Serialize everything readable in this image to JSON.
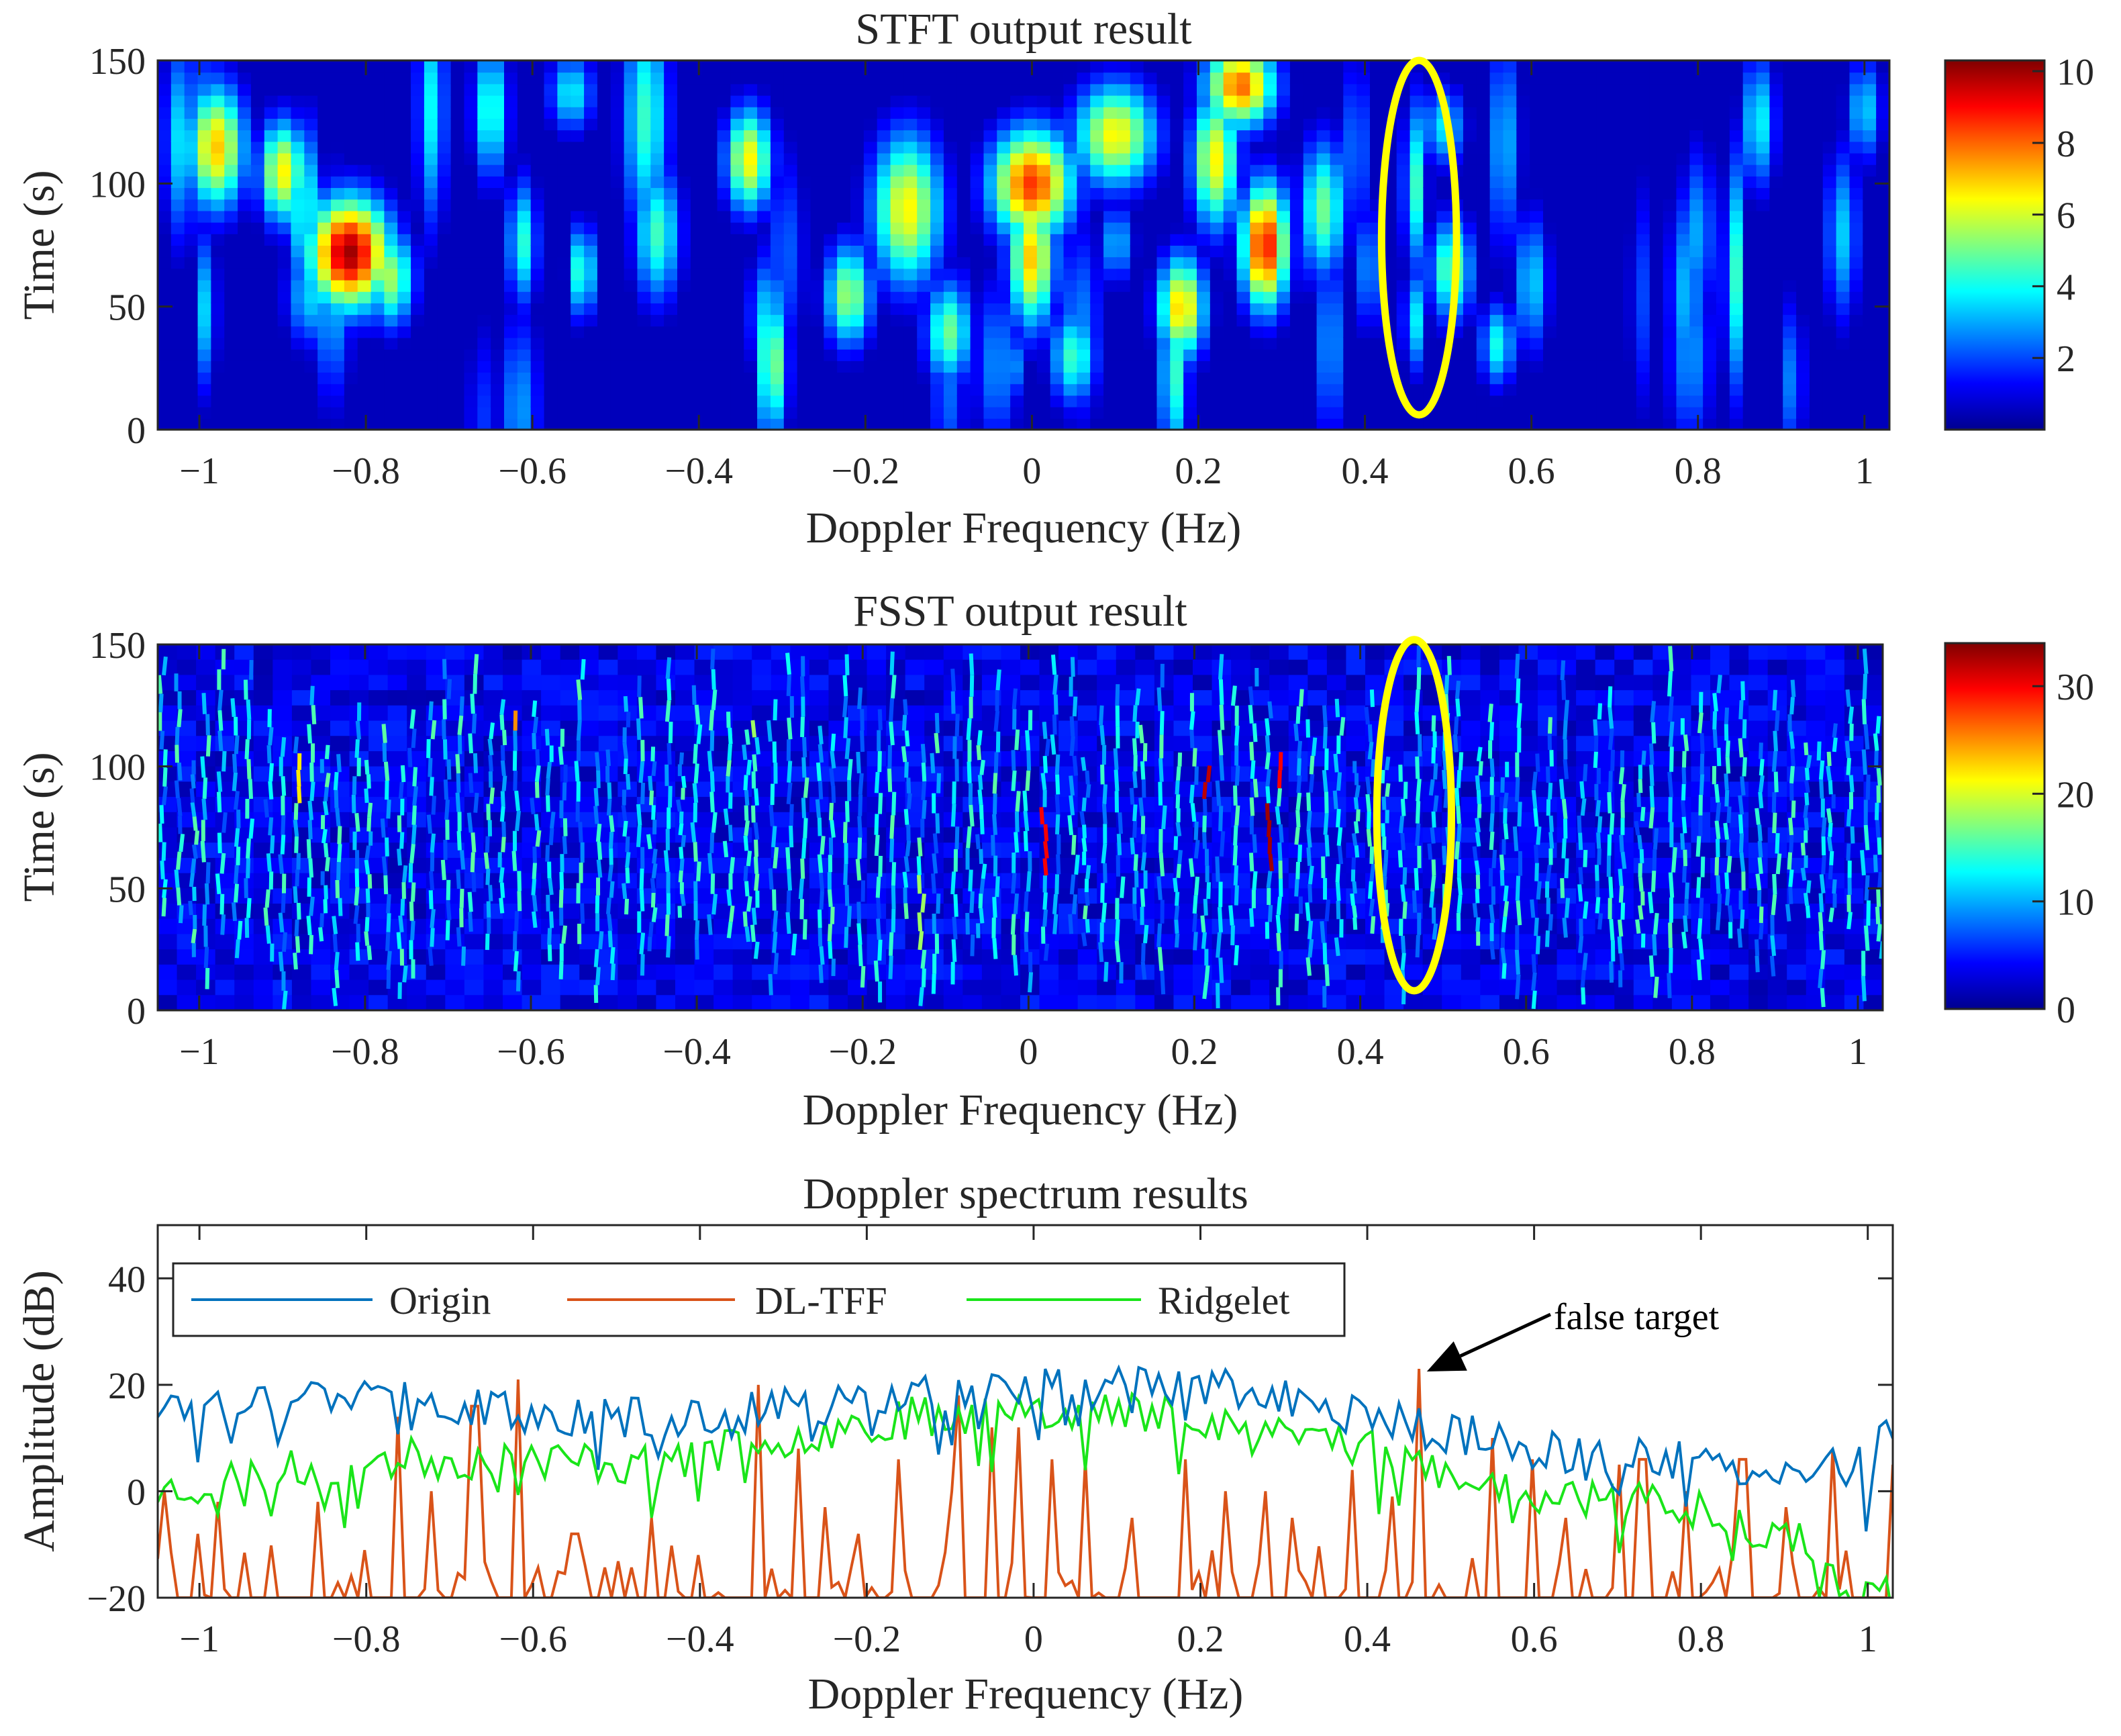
{
  "chart_data": [
    {
      "id": "stft",
      "type": "heatmap",
      "title": "STFT output result",
      "xlabel": "Doppler Frequency (Hz)",
      "ylabel": "Time (s)",
      "xlim": [
        -1.05,
        1.03
      ],
      "ylim": [
        0,
        150
      ],
      "xticks": [
        -1,
        -0.8,
        -0.6,
        -0.4,
        -0.2,
        0,
        0.2,
        0.4,
        0.6,
        0.8,
        1
      ],
      "xtick_labels": [
        "−1",
        "−0.8",
        "−0.6",
        "−0.4",
        "−0.2",
        "0",
        "0.2",
        "0.4",
        "0.6",
        "0.8",
        "1"
      ],
      "yticks": [
        0,
        50,
        100,
        150
      ],
      "ytick_labels": [
        "0",
        "50",
        "100",
        "150"
      ],
      "colorbar": {
        "colormap": "jet",
        "range": [
          0,
          10.3
        ],
        "ticks": [
          2,
          4,
          6,
          8,
          10
        ],
        "tick_labels": [
          "2",
          "4",
          "6",
          "8",
          "10"
        ]
      },
      "hotspots": [
        {
          "f": -0.82,
          "t": 72,
          "v": 10,
          "sf": 0.035,
          "st": 16
        },
        {
          "f": -0.98,
          "t": 115,
          "v": 7,
          "sf": 0.025,
          "st": 18
        },
        {
          "f": -0.9,
          "t": 105,
          "v": 6.5,
          "sf": 0.02,
          "st": 15
        },
        {
          "f": -0.77,
          "t": 62,
          "v": 5.5,
          "sf": 0.02,
          "st": 14
        },
        {
          "f": 0.0,
          "t": 100,
          "v": 8.5,
          "sf": 0.035,
          "st": 16
        },
        {
          "f": 0.0,
          "t": 70,
          "v": 7,
          "sf": 0.02,
          "st": 20
        },
        {
          "f": 0.28,
          "t": 75,
          "v": 9,
          "sf": 0.02,
          "st": 18
        },
        {
          "f": 0.25,
          "t": 140,
          "v": 8,
          "sf": 0.03,
          "st": 12
        },
        {
          "f": 0.18,
          "t": 50,
          "v": 7,
          "sf": 0.02,
          "st": 15
        },
        {
          "f": 0.1,
          "t": 120,
          "v": 6.5,
          "sf": 0.035,
          "st": 15
        },
        {
          "f": -0.34,
          "t": 110,
          "v": 6.5,
          "sf": 0.02,
          "st": 15
        },
        {
          "f": -0.15,
          "t": 90,
          "v": 6.5,
          "sf": 0.03,
          "st": 22
        },
        {
          "f": -0.22,
          "t": 55,
          "v": 5.5,
          "sf": 0.02,
          "st": 15
        },
        {
          "f": 0.22,
          "t": 110,
          "v": 6.5,
          "sf": 0.02,
          "st": 20
        },
        {
          "f": -0.1,
          "t": 40,
          "v": 5,
          "sf": 0.02,
          "st": 15
        },
        {
          "f": 0.35,
          "t": 90,
          "v": 5,
          "sf": 0.02,
          "st": 20
        },
        {
          "f": -0.65,
          "t": 130,
          "v": 4.5,
          "sf": 0.015,
          "st": 20
        },
        {
          "f": 0.46,
          "t": 100,
          "v": 4.5,
          "sf": 0.01,
          "st": 25
        },
        {
          "f": 0.46,
          "t": 45,
          "v": 3.8,
          "sf": 0.01,
          "st": 15
        },
        {
          "f": -0.45,
          "t": 80,
          "v": 4.5,
          "sf": 0.02,
          "st": 20
        },
        {
          "f": 0.05,
          "t": 30,
          "v": 4.5,
          "sf": 0.02,
          "st": 14
        },
        {
          "f": 0.6,
          "t": 60,
          "v": 3.5,
          "sf": 0.015,
          "st": 20
        },
        {
          "f": 1.0,
          "t": 130,
          "v": 3.5,
          "sf": 0.015,
          "st": 15
        },
        {
          "f": 0.8,
          "t": 80,
          "v": 3.0,
          "sf": 0.015,
          "st": 25
        }
      ],
      "highlight_ellipse": {
        "f": 0.465,
        "t": 78,
        "rf": 0.045,
        "rt": 72
      }
    },
    {
      "id": "fsst",
      "type": "heatmap",
      "title": "FSST output result",
      "xlabel": "Doppler Frequency (Hz)",
      "ylabel": "Time (s)",
      "xlim": [
        -1.05,
        1.03
      ],
      "ylim": [
        0,
        150
      ],
      "xticks": [
        -1,
        -0.8,
        -0.6,
        -0.4,
        -0.2,
        0,
        0.2,
        0.4,
        0.6,
        0.8,
        1
      ],
      "xtick_labels": [
        "−1",
        "−0.8",
        "−0.6",
        "−0.4",
        "−0.2",
        "0",
        "0.2",
        "0.4",
        "0.6",
        "0.8",
        "1"
      ],
      "yticks": [
        0,
        50,
        100,
        150
      ],
      "ytick_labels": [
        "0",
        "50",
        "100",
        "150"
      ],
      "colorbar": {
        "colormap": "jet",
        "range": [
          0,
          34
        ],
        "ticks": [
          0,
          10,
          20,
          30
        ],
        "tick_labels": [
          "0",
          "10",
          "20",
          "30"
        ]
      },
      "ridge_spacing_hz": 0.018,
      "ridge_peaks": [
        {
          "f": -0.88,
          "t": 95,
          "v": 22
        },
        {
          "f": -0.62,
          "t": 125,
          "v": 25
        },
        {
          "f": 0.02,
          "t": 70,
          "v": 30
        },
        {
          "f": 0.22,
          "t": 100,
          "v": 32
        },
        {
          "f": 0.29,
          "t": 70,
          "v": 33
        },
        {
          "f": 0.31,
          "t": 100,
          "v": 30
        },
        {
          "f": -0.12,
          "t": 40,
          "v": 18
        },
        {
          "f": -0.33,
          "t": 125,
          "v": 18
        },
        {
          "f": 0.465,
          "t": 90,
          "v": 14
        }
      ],
      "highlight_ellipse": {
        "f": 0.465,
        "t": 80,
        "rf": 0.045,
        "rt": 72
      }
    },
    {
      "id": "spectrum",
      "type": "line",
      "title": "Doppler spectrum results",
      "xlabel": "Doppler Frequency (Hz)",
      "ylabel": "Amplitude (dB)",
      "xlim": [
        -1.05,
        1.03
      ],
      "ylim": [
        -20,
        50
      ],
      "xticks": [
        -1,
        -0.8,
        -0.6,
        -0.4,
        -0.2,
        0,
        0.2,
        0.4,
        0.6,
        0.8,
        1
      ],
      "xtick_labels": [
        "−1",
        "−0.8",
        "−0.6",
        "−0.4",
        "−0.2",
        "0",
        "0.2",
        "0.4",
        "0.6",
        "0.8",
        "1"
      ],
      "yticks": [
        -20,
        0,
        20,
        40
      ],
      "ytick_labels": [
        "−20",
        "0",
        "20",
        "40"
      ],
      "legend_position": "top-left",
      "series": [
        {
          "name": "Origin",
          "color": "#0072BD",
          "sampling_hz": 0.008,
          "envelope": [
            [
              -1.05,
              16
            ],
            [
              -0.8,
              19
            ],
            [
              -0.6,
              14
            ],
            [
              -0.4,
              14
            ],
            [
              -0.2,
              17
            ],
            [
              0.0,
              19
            ],
            [
              0.2,
              20
            ],
            [
              0.4,
              14
            ],
            [
              0.6,
              8
            ],
            [
              0.8,
              5
            ],
            [
              1.0,
              5
            ],
            [
              1.03,
              12
            ]
          ]
        },
        {
          "name": "DL-TFF",
          "color": "#D95319",
          "sampling_hz": 0.008,
          "floor": -20,
          "peaks": [
            [
              -1.04,
              0
            ],
            [
              -1.0,
              -8
            ],
            [
              -0.98,
              -2
            ],
            [
              -0.86,
              -2
            ],
            [
              -0.76,
              14
            ],
            [
              -0.72,
              0
            ],
            [
              -0.67,
              16
            ],
            [
              -0.62,
              21
            ],
            [
              -0.55,
              -8
            ],
            [
              -0.46,
              -5
            ],
            [
              -0.4,
              -12
            ],
            [
              -0.33,
              20
            ],
            [
              -0.28,
              8
            ],
            [
              -0.25,
              -3
            ],
            [
              -0.21,
              -8
            ],
            [
              -0.16,
              6
            ],
            [
              -0.1,
              0
            ],
            [
              -0.09,
              18
            ],
            [
              -0.05,
              12
            ],
            [
              -0.02,
              12
            ],
            [
              0.02,
              6
            ],
            [
              0.06,
              6
            ],
            [
              0.12,
              -5
            ],
            [
              0.18,
              6
            ],
            [
              0.23,
              0
            ],
            [
              0.28,
              0
            ],
            [
              0.31,
              -5
            ],
            [
              0.38,
              4
            ],
            [
              0.43,
              -1
            ],
            [
              0.465,
              23
            ],
            [
              0.55,
              10
            ],
            [
              0.6,
              6
            ],
            [
              0.64,
              -5
            ],
            [
              0.7,
              5
            ],
            [
              0.73,
              6
            ],
            [
              0.78,
              0
            ],
            [
              0.85,
              6
            ],
            [
              0.9,
              -3
            ],
            [
              0.96,
              8
            ],
            [
              1.03,
              5
            ]
          ]
        },
        {
          "name": "Ridgelet",
          "color": "#1AE51A",
          "sampling_hz": 0.008,
          "envelope": [
            [
              -1.05,
              0
            ],
            [
              -0.8,
              6
            ],
            [
              -0.6,
              6
            ],
            [
              -0.45,
              5
            ],
            [
              -0.3,
              10
            ],
            [
              -0.2,
              13
            ],
            [
              0.0,
              16
            ],
            [
              0.2,
              14
            ],
            [
              0.4,
              9
            ],
            [
              0.5,
              3
            ],
            [
              0.6,
              0
            ],
            [
              0.8,
              -3
            ],
            [
              0.95,
              -10
            ],
            [
              0.97,
              -20
            ]
          ]
        }
      ],
      "annotation": {
        "text": "false target",
        "f": 0.465,
        "amp": 22
      }
    }
  ]
}
